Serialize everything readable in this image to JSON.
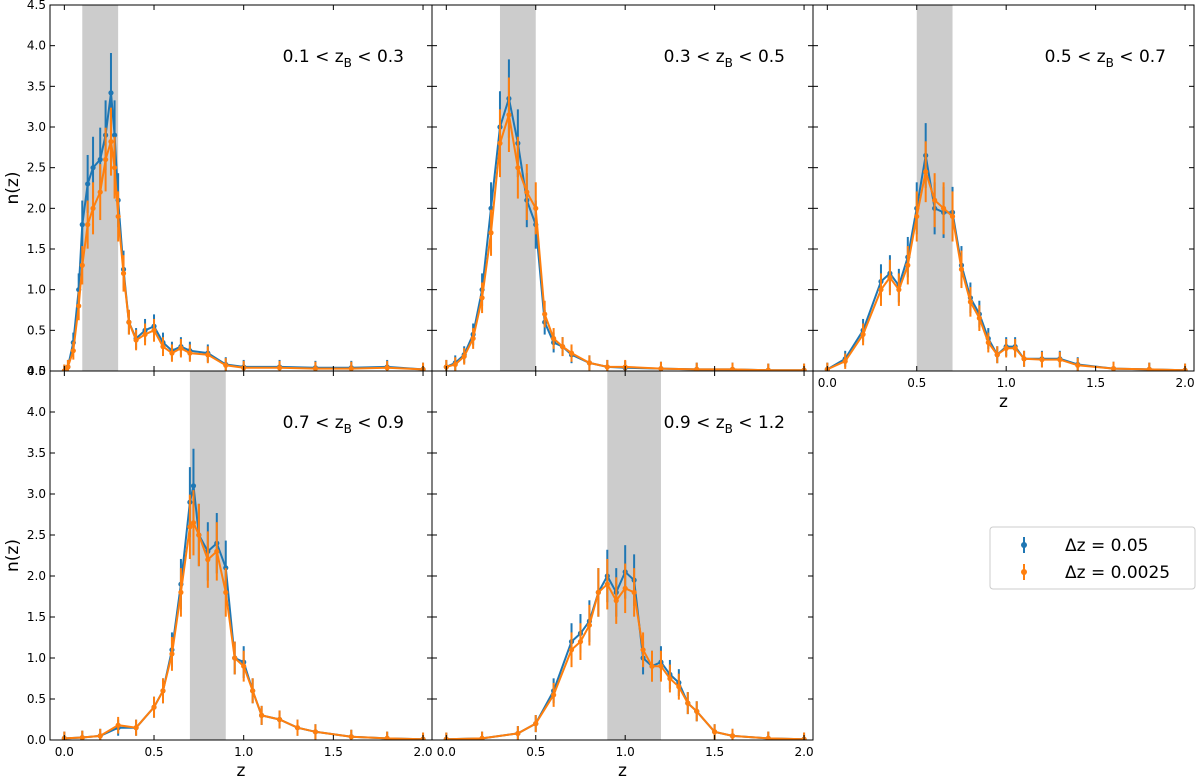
{
  "colors": {
    "series1": "#1f77b4",
    "series2": "#ff7f0e",
    "band": "#cccccc"
  },
  "chart_data": {
    "type": "line",
    "ylabel": "n(z)",
    "xlabel": "z",
    "xlim": [
      -0.08,
      2.05
    ],
    "ylim": [
      0,
      4.5
    ],
    "xticks": [
      "0.0",
      "0.5",
      "1.0",
      "1.5",
      "2.0"
    ],
    "yticks": [
      "0.0",
      "0.5",
      "1.0",
      "1.5",
      "2.0",
      "2.5",
      "3.0",
      "3.5",
      "4.0",
      "4.5"
    ],
    "legend": {
      "position": "lower-right-outside",
      "entries": [
        {
          "series": 0,
          "label": "Δz = 0.05"
        },
        {
          "series": 1,
          "label": "Δz = 0.0025"
        }
      ]
    },
    "panels": [
      {
        "label": {
          "left": "0.1 < z",
          "sub": "B",
          "right": " < 0.3"
        },
        "band": [
          0.1,
          0.3
        ],
        "series": [
          {
            "name": "Δz = 0.05",
            "z": [
              0.0,
              0.02,
              0.05,
              0.08,
              0.1,
              0.13,
              0.16,
              0.2,
              0.23,
              0.26,
              0.28,
              0.3,
              0.33,
              0.36,
              0.4,
              0.45,
              0.5,
              0.55,
              0.6,
              0.65,
              0.7,
              0.8,
              0.9,
              1.0,
              1.2,
              1.4,
              1.6,
              1.8,
              2.0
            ],
            "nz": [
              0.0,
              0.05,
              0.35,
              1.0,
              1.8,
              2.3,
              2.5,
              2.6,
              2.9,
              3.42,
              2.9,
              2.1,
              1.25,
              0.6,
              0.4,
              0.5,
              0.55,
              0.35,
              0.25,
              0.3,
              0.25,
              0.22,
              0.08,
              0.05,
              0.05,
              0.04,
              0.04,
              0.05,
              0.02
            ]
          },
          {
            "name": "Δz = 0.0025",
            "z": [
              0.0,
              0.02,
              0.05,
              0.08,
              0.1,
              0.13,
              0.16,
              0.2,
              0.23,
              0.26,
              0.28,
              0.3,
              0.33,
              0.36,
              0.4,
              0.45,
              0.5,
              0.55,
              0.6,
              0.65,
              0.7,
              0.8,
              0.9,
              1.0,
              1.2,
              1.4,
              1.6,
              1.8,
              2.0
            ],
            "nz": [
              0.0,
              0.05,
              0.25,
              0.8,
              1.3,
              1.8,
              2.0,
              2.2,
              2.6,
              2.82,
              2.5,
              1.9,
              1.2,
              0.6,
              0.38,
              0.45,
              0.5,
              0.3,
              0.22,
              0.28,
              0.22,
              0.2,
              0.07,
              0.04,
              0.04,
              0.03,
              0.03,
              0.04,
              0.02
            ]
          }
        ]
      },
      {
        "label": {
          "left": "0.3 < z",
          "sub": "B",
          "right": " < 0.5"
        },
        "band": [
          0.3,
          0.5
        ],
        "series": [
          {
            "name": "Δz = 0.05",
            "z": [
              0.0,
              0.05,
              0.1,
              0.15,
              0.2,
              0.25,
              0.3,
              0.35,
              0.4,
              0.45,
              0.5,
              0.55,
              0.6,
              0.65,
              0.7,
              0.8,
              0.9,
              1.0,
              1.2,
              1.4,
              1.6,
              1.8,
              2.0
            ],
            "nz": [
              0.05,
              0.1,
              0.2,
              0.45,
              1.0,
              2.0,
              3.0,
              3.35,
              2.8,
              2.1,
              1.8,
              0.6,
              0.35,
              0.3,
              0.2,
              0.1,
              0.05,
              0.04,
              0.03,
              0.02,
              0.02,
              0.01,
              0.01
            ]
          },
          {
            "name": "Δz = 0.0025",
            "z": [
              0.0,
              0.05,
              0.1,
              0.15,
              0.2,
              0.25,
              0.3,
              0.35,
              0.4,
              0.45,
              0.5,
              0.55,
              0.6,
              0.65,
              0.7,
              0.8,
              0.9,
              1.0,
              1.2,
              1.4,
              1.6,
              1.8,
              2.0
            ],
            "nz": [
              0.05,
              0.08,
              0.18,
              0.4,
              0.9,
              1.7,
              2.8,
              3.15,
              2.5,
              2.2,
              2.0,
              0.7,
              0.4,
              0.3,
              0.22,
              0.1,
              0.05,
              0.05,
              0.03,
              0.02,
              0.02,
              0.01,
              0.01
            ]
          }
        ]
      },
      {
        "label": {
          "left": "0.5 < z",
          "sub": "B",
          "right": " < 0.7"
        },
        "band": [
          0.5,
          0.7
        ],
        "series": [
          {
            "name": "Δz = 0.05",
            "z": [
              0.0,
              0.1,
              0.2,
              0.3,
              0.35,
              0.4,
              0.45,
              0.5,
              0.55,
              0.6,
              0.65,
              0.7,
              0.75,
              0.8,
              0.85,
              0.9,
              0.95,
              1.0,
              1.05,
              1.1,
              1.2,
              1.3,
              1.4,
              1.6,
              1.8,
              2.0
            ],
            "nz": [
              0.02,
              0.15,
              0.5,
              1.1,
              1.2,
              1.05,
              1.4,
              2.0,
              2.65,
              2.0,
              1.95,
              1.95,
              1.3,
              0.9,
              0.7,
              0.4,
              0.2,
              0.3,
              0.3,
              0.15,
              0.15,
              0.15,
              0.08,
              0.03,
              0.02,
              0.01
            ]
          },
          {
            "name": "Δz = 0.0025",
            "z": [
              0.0,
              0.1,
              0.2,
              0.3,
              0.35,
              0.4,
              0.45,
              0.5,
              0.55,
              0.6,
              0.65,
              0.7,
              0.75,
              0.8,
              0.85,
              0.9,
              0.95,
              1.0,
              1.05,
              1.1,
              1.2,
              1.3,
              1.4,
              1.6,
              1.8,
              2.0
            ],
            "nz": [
              0.02,
              0.12,
              0.45,
              1.0,
              1.15,
              1.0,
              1.3,
              1.9,
              2.45,
              2.1,
              2.0,
              1.9,
              1.25,
              0.85,
              0.65,
              0.35,
              0.2,
              0.28,
              0.28,
              0.15,
              0.14,
              0.14,
              0.07,
              0.03,
              0.02,
              0.01
            ]
          }
        ]
      },
      {
        "label": {
          "left": "0.7 < z",
          "sub": "B",
          "right": " < 0.9"
        },
        "band": [
          0.7,
          0.9
        ],
        "series": [
          {
            "name": "Δz = 0.05",
            "z": [
              0.0,
              0.1,
              0.2,
              0.3,
              0.4,
              0.5,
              0.55,
              0.6,
              0.65,
              0.7,
              0.72,
              0.75,
              0.8,
              0.85,
              0.9,
              0.95,
              1.0,
              1.05,
              1.1,
              1.2,
              1.3,
              1.4,
              1.6,
              1.8,
              2.0
            ],
            "nz": [
              0.02,
              0.03,
              0.05,
              0.15,
              0.15,
              0.4,
              0.6,
              1.1,
              1.9,
              2.9,
              3.1,
              2.5,
              2.3,
              2.4,
              2.1,
              1.0,
              0.95,
              0.6,
              0.3,
              0.25,
              0.15,
              0.1,
              0.04,
              0.02,
              0.01
            ]
          },
          {
            "name": "Δz = 0.0025",
            "z": [
              0.0,
              0.1,
              0.2,
              0.3,
              0.4,
              0.5,
              0.55,
              0.6,
              0.65,
              0.7,
              0.72,
              0.75,
              0.8,
              0.85,
              0.9,
              0.95,
              1.0,
              1.05,
              1.1,
              1.2,
              1.3,
              1.4,
              1.6,
              1.8,
              2.0
            ],
            "nz": [
              0.02,
              0.03,
              0.05,
              0.18,
              0.15,
              0.4,
              0.6,
              1.05,
              1.8,
              2.6,
              2.65,
              2.5,
              2.2,
              2.3,
              1.8,
              1.0,
              0.9,
              0.6,
              0.3,
              0.25,
              0.15,
              0.1,
              0.04,
              0.02,
              0.01
            ]
          }
        ]
      },
      {
        "label": {
          "left": "0.9 < z",
          "sub": "B",
          "right": " < 1.2"
        },
        "band": [
          0.9,
          1.2
        ],
        "series": [
          {
            "name": "Δz = 0.05",
            "z": [
              0.0,
              0.2,
              0.4,
              0.5,
              0.6,
              0.7,
              0.75,
              0.8,
              0.85,
              0.9,
              0.95,
              1.0,
              1.05,
              1.1,
              1.15,
              1.2,
              1.25,
              1.3,
              1.35,
              1.4,
              1.5,
              1.6,
              1.8,
              2.0
            ],
            "nz": [
              0.01,
              0.02,
              0.08,
              0.2,
              0.6,
              1.2,
              1.3,
              1.45,
              1.8,
              2.0,
              1.8,
              2.05,
              1.95,
              1.0,
              0.9,
              0.95,
              0.8,
              0.7,
              0.45,
              0.35,
              0.1,
              0.05,
              0.02,
              0.01
            ]
          },
          {
            "name": "Δz = 0.0025",
            "z": [
              0.0,
              0.2,
              0.4,
              0.5,
              0.6,
              0.7,
              0.75,
              0.8,
              0.85,
              0.9,
              0.95,
              1.0,
              1.05,
              1.1,
              1.15,
              1.2,
              1.25,
              1.3,
              1.35,
              1.4,
              1.5,
              1.6,
              1.8,
              2.0
            ],
            "nz": [
              0.01,
              0.02,
              0.08,
              0.2,
              0.55,
              1.1,
              1.2,
              1.4,
              1.8,
              1.9,
              1.7,
              1.85,
              1.8,
              1.1,
              0.9,
              0.9,
              0.75,
              0.65,
              0.45,
              0.35,
              0.1,
              0.05,
              0.02,
              0.01
            ]
          }
        ]
      }
    ]
  }
}
